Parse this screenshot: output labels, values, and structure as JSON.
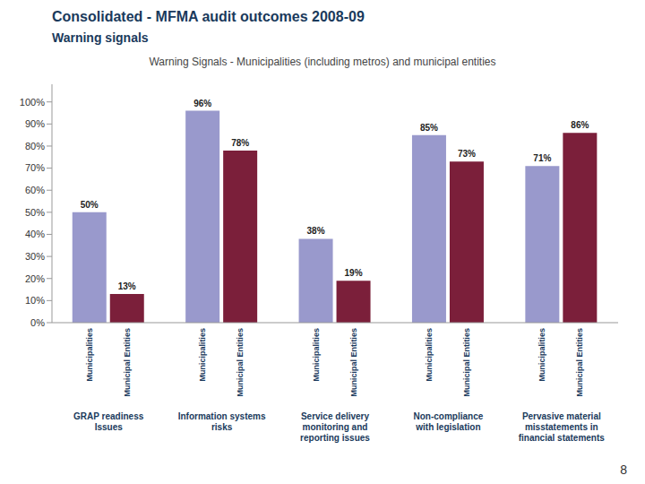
{
  "chart_data": {
    "type": "bar",
    "title": "Consolidated - MFMA audit outcomes 2008-09",
    "subtitle": "Warning signals",
    "annotations": [
      "Warning Signals - Municipalities (including metros) and municipal entities",
      "8"
    ],
    "categories": [
      "GRAP readiness\nIssues",
      "Information systems\nrisks",
      "Service delivery\nmonitoring and\nreporting issues",
      "Non-compliance\nwith legislation",
      "Pervasive material\nmisstatements in\nfinancial statements"
    ],
    "series": [
      {
        "name": "Municipalities",
        "color": "#9999CC",
        "values": [
          50,
          96,
          38,
          85,
          71
        ],
        "value_labels": [
          "50%",
          "96%",
          "38%",
          "85%",
          "71%"
        ]
      },
      {
        "name": "Municipal Entities",
        "color": "#7B1F3A",
        "values": [
          13,
          78,
          19,
          73,
          86
        ],
        "value_labels": [
          "13%",
          "78%",
          "19%",
          "73%",
          "86%"
        ]
      }
    ],
    "ylim": [
      0,
      108
    ],
    "yticks": [
      {
        "value": 0,
        "label": "0%"
      },
      {
        "value": 10,
        "label": "10%"
      },
      {
        "value": 20,
        "label": "20%"
      },
      {
        "value": 30,
        "label": "30%"
      },
      {
        "value": 40,
        "label": "40%"
      },
      {
        "value": 50,
        "label": "50%"
      },
      {
        "value": 60,
        "label": "60%"
      },
      {
        "value": 70,
        "label": "70%"
      },
      {
        "value": 80,
        "label": "80%"
      },
      {
        "value": 90,
        "label": "90%"
      },
      {
        "value": 100,
        "label": "100%"
      }
    ],
    "data_labels": true,
    "title_color": "#1a3a5c"
  }
}
